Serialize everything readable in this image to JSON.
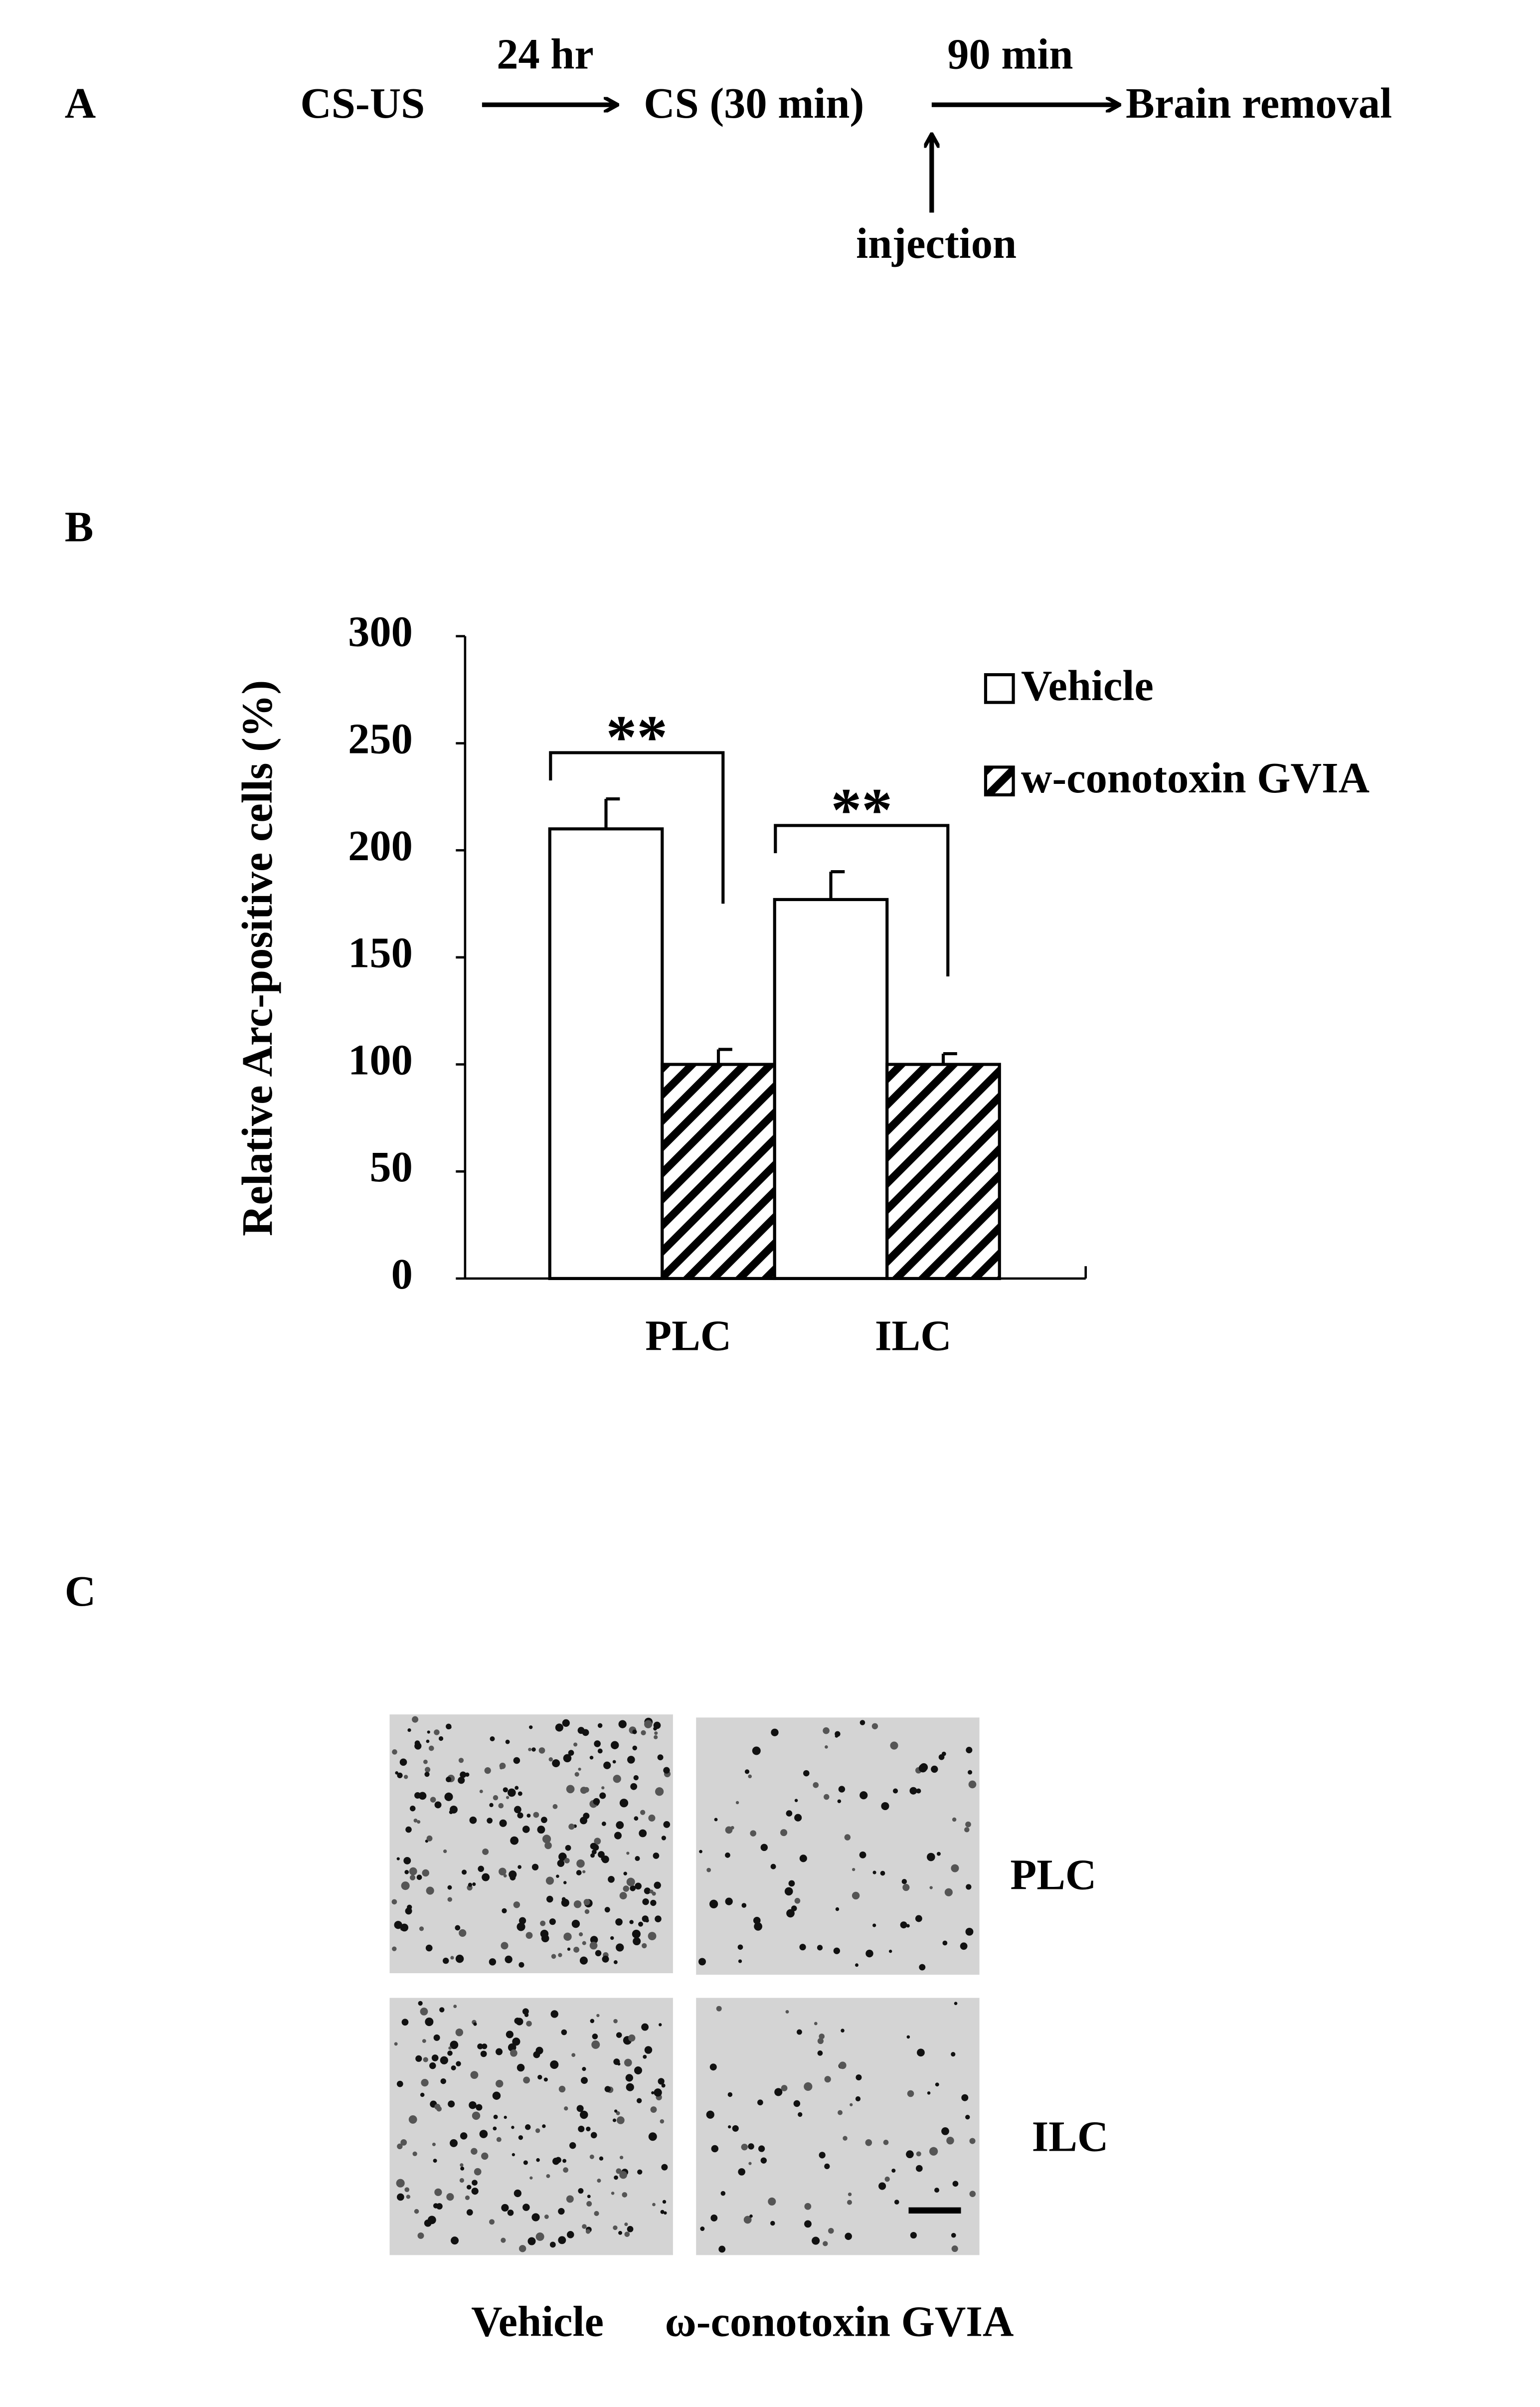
{
  "panels": {
    "a": {
      "label": "A",
      "steps": [
        "CS-US",
        "CS (30 min)",
        "Brain removal"
      ],
      "intervals": [
        "24 hr",
        "90 min"
      ],
      "event": "injection"
    },
    "b": {
      "label": "B"
    },
    "c": {
      "label": "C",
      "rows": [
        "PLC",
        "ILC"
      ],
      "columns": [
        "Vehicle",
        "ω-conotoxin GVIA"
      ]
    }
  },
  "chart_data": {
    "type": "bar",
    "y_label": "Relative Arc-positive cells (%)",
    "categories": [
      "PLC",
      "ILC"
    ],
    "series": [
      {
        "name": "Vehicle",
        "color": "#ffffff",
        "hatch": false,
        "values": [
          210,
          177
        ],
        "errors": [
          14,
          13
        ]
      },
      {
        "name": "w-conotoxin GVIA",
        "color": "#000000",
        "hatch": true,
        "values": [
          100,
          100
        ],
        "errors": [
          7,
          5
        ]
      }
    ],
    "annotations": [
      "**",
      "**"
    ],
    "ylim": [
      0,
      300
    ],
    "yticks": [
      0,
      50,
      100,
      150,
      200,
      250,
      300
    ],
    "legend": "top-right"
  }
}
